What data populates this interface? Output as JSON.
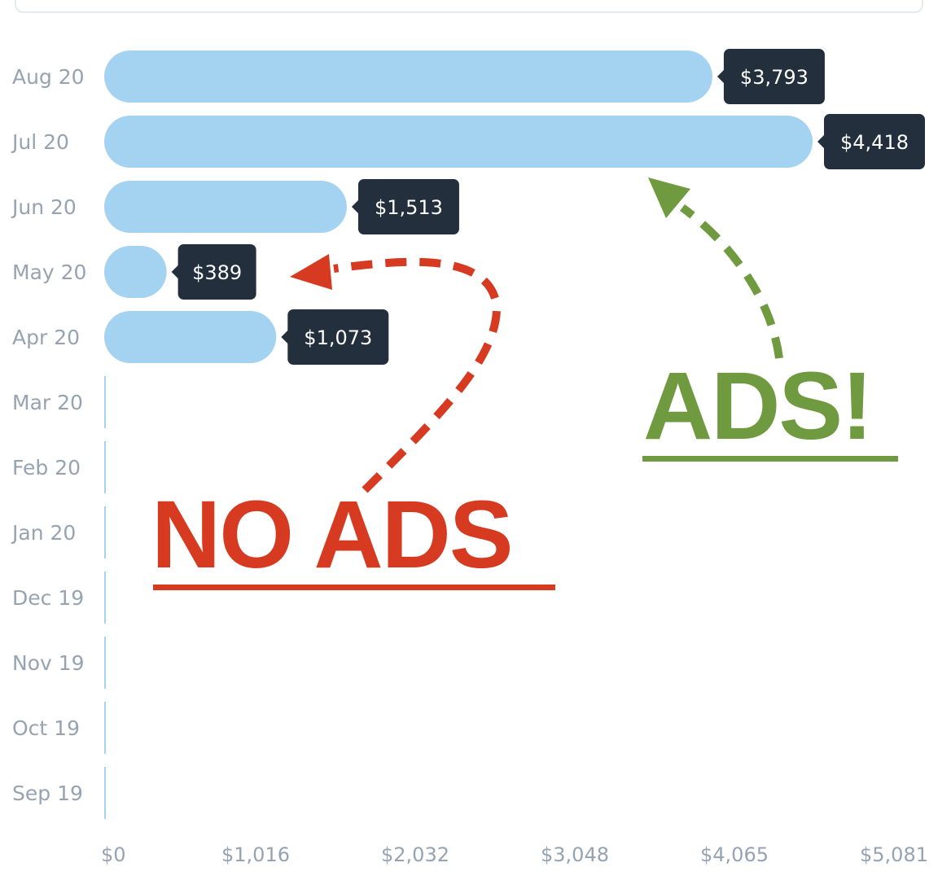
{
  "chart_data": {
    "type": "bar",
    "orientation": "horizontal",
    "categories": [
      "Aug 20",
      "Jul 20",
      "Jun 20",
      "May 20",
      "Apr 20",
      "Mar 20",
      "Feb 20",
      "Jan 20",
      "Dec 19",
      "Nov 19",
      "Oct 19",
      "Sep 19"
    ],
    "values": [
      3793,
      4418,
      1513,
      389,
      1073,
      0,
      0,
      0,
      0,
      0,
      0,
      0
    ],
    "value_labels": [
      "$3,793",
      "$4,418",
      "$1,513",
      "$389",
      "$1,073",
      "",
      "",
      "",
      "",
      "",
      "",
      ""
    ],
    "x_ticks": [
      "$0",
      "$1,016",
      "$2,032",
      "$3,048",
      "$4,065",
      "$5,081"
    ],
    "xlim": [
      0,
      5081
    ],
    "grid": false,
    "colors": {
      "bar": "#a4d3f2",
      "tooltip": "#232f3c",
      "axis_text": "#96a3b1"
    }
  },
  "annotations": {
    "no_ads": {
      "text": "NO ADS",
      "color": "#d63b22"
    },
    "ads": {
      "text": "ADS!",
      "color": "#6f9a3f"
    }
  }
}
